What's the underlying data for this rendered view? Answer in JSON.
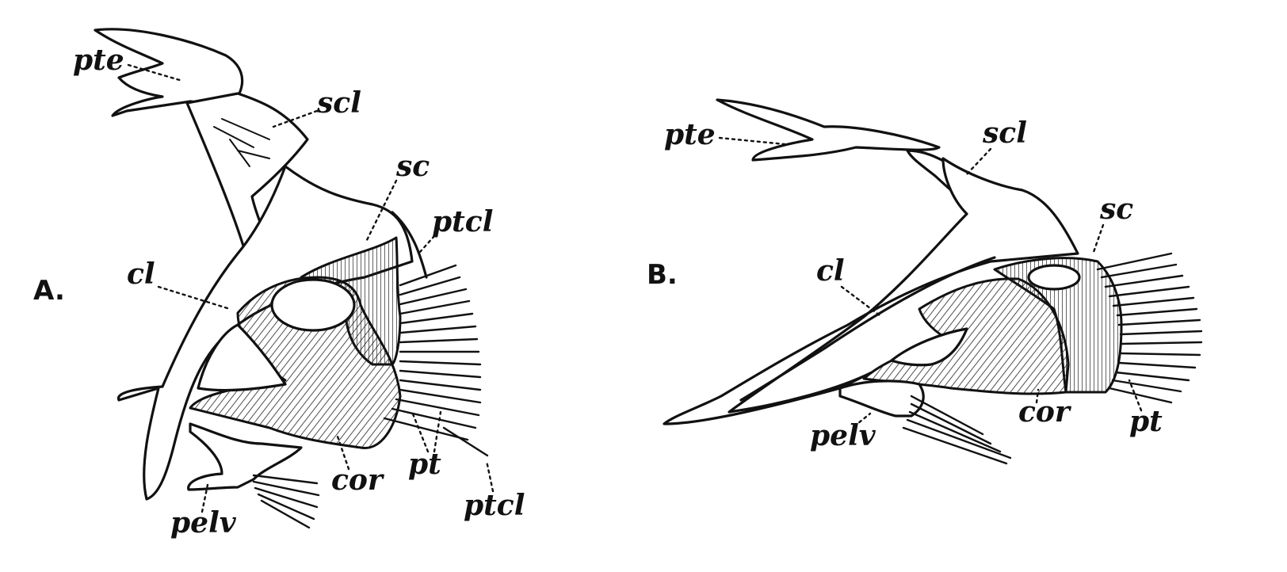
{
  "panels": [
    {
      "id": "A",
      "letter": "A.",
      "labels": {
        "pte": "pte",
        "scl": "scl",
        "sc": "sc",
        "ptcl": "ptcl",
        "cl": "cl",
        "cor": "cor",
        "pt": "pt",
        "pelv": "pelv",
        "ptcl_lower": "ptcl"
      }
    },
    {
      "id": "B",
      "letter": "B.",
      "labels": {
        "pte": "pte",
        "scl": "scl",
        "sc": "sc",
        "cl": "cl",
        "cor": "cor",
        "pt": "pt",
        "pelv": "pelv"
      }
    }
  ]
}
